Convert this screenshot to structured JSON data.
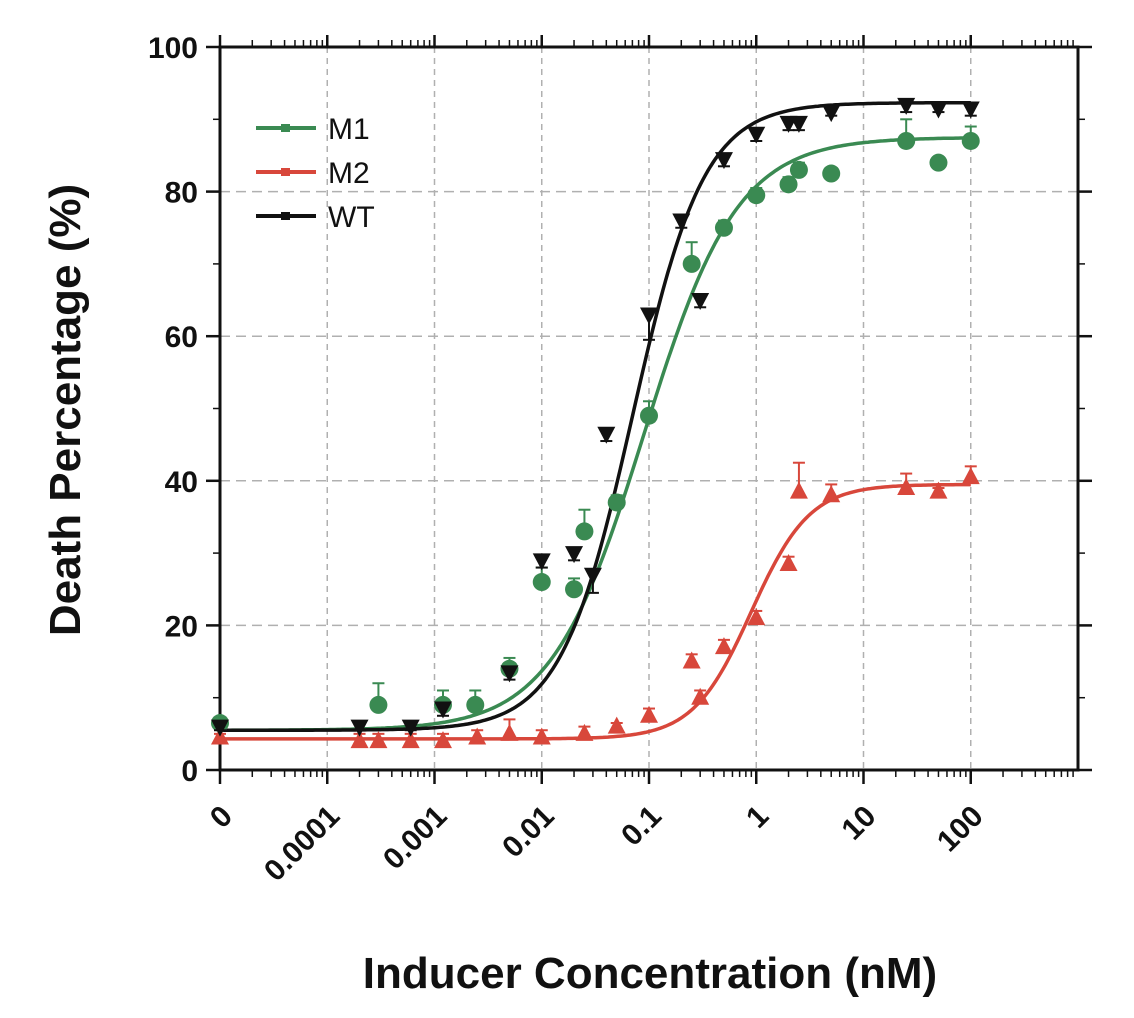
{
  "chart_data": {
    "type": "scatter",
    "xlabel": "Inducer Concentration (nM)",
    "ylabel": "Death Percentage (%)",
    "x_scale": "log",
    "xlim": [
      1e-05,
      1000
    ],
    "ylim": [
      0,
      100
    ],
    "x_ticks": [
      {
        "value": 1e-05,
        "label": "0"
      },
      {
        "value": 0.0001,
        "label": "0.0001"
      },
      {
        "value": 0.001,
        "label": "0.001"
      },
      {
        "value": 0.01,
        "label": "0.01"
      },
      {
        "value": 0.1,
        "label": "0.1"
      },
      {
        "value": 1,
        "label": "1"
      },
      {
        "value": 10,
        "label": "10"
      },
      {
        "value": 100,
        "label": "100"
      }
    ],
    "y_ticks": [
      {
        "value": 0,
        "label": "0"
      },
      {
        "value": 20,
        "label": "20"
      },
      {
        "value": 40,
        "label": "40"
      },
      {
        "value": 60,
        "label": "60"
      },
      {
        "value": 80,
        "label": "80"
      },
      {
        "value": 100,
        "label": "100"
      }
    ],
    "grid": true,
    "legend_position": "top-left",
    "series": [
      {
        "name": "M1",
        "color": "#3a8a52",
        "marker": "circle",
        "points": [
          {
            "x": 1e-05,
            "y": 6.5,
            "err": 0.5
          },
          {
            "x": 0.0003,
            "y": 9,
            "err": 3
          },
          {
            "x": 0.0012,
            "y": 9,
            "err": 2
          },
          {
            "x": 0.0024,
            "y": 9,
            "err": 2
          },
          {
            "x": 0.005,
            "y": 14,
            "err": 1.5
          },
          {
            "x": 0.01,
            "y": 26,
            "err": 2
          },
          {
            "x": 0.02,
            "y": 25,
            "err": 1.5
          },
          {
            "x": 0.025,
            "y": 33,
            "err": 3
          },
          {
            "x": 0.05,
            "y": 37,
            "err": 1
          },
          {
            "x": 0.1,
            "y": 49,
            "err": 2
          },
          {
            "x": 0.25,
            "y": 70,
            "err": 3
          },
          {
            "x": 0.5,
            "y": 75,
            "err": 1
          },
          {
            "x": 1,
            "y": 79.5,
            "err": 1
          },
          {
            "x": 2,
            "y": 81,
            "err": 1
          },
          {
            "x": 2.5,
            "y": 83,
            "err": 1
          },
          {
            "x": 5,
            "y": 82.5,
            "err": 0.5
          },
          {
            "x": 25,
            "y": 87,
            "err": 3
          },
          {
            "x": 50,
            "y": 84,
            "err": 0.5
          },
          {
            "x": 100,
            "y": 87,
            "err": 2
          }
        ],
        "fit": {
          "bottom": 5.5,
          "top": 87.5,
          "ec50": 0.09,
          "hill": 1.0
        }
      },
      {
        "name": "M2",
        "color": "#d8473b",
        "marker": "triangle-up",
        "points": [
          {
            "x": 1e-05,
            "y": 4.5,
            "err": 0.5
          },
          {
            "x": 0.0002,
            "y": 4,
            "err": 1
          },
          {
            "x": 0.0003,
            "y": 4,
            "err": 1
          },
          {
            "x": 0.0006,
            "y": 4,
            "err": 1
          },
          {
            "x": 0.0012,
            "y": 4,
            "err": 1
          },
          {
            "x": 0.0025,
            "y": 4.5,
            "err": 1
          },
          {
            "x": 0.005,
            "y": 5,
            "err": 2
          },
          {
            "x": 0.01,
            "y": 4.5,
            "err": 1
          },
          {
            "x": 0.025,
            "y": 5,
            "err": 1
          },
          {
            "x": 0.05,
            "y": 6,
            "err": 0.5
          },
          {
            "x": 0.1,
            "y": 7.5,
            "err": 1
          },
          {
            "x": 0.25,
            "y": 15,
            "err": 1
          },
          {
            "x": 0.3,
            "y": 10,
            "err": 1
          },
          {
            "x": 0.5,
            "y": 17,
            "err": 1
          },
          {
            "x": 1,
            "y": 21,
            "err": 1
          },
          {
            "x": 2,
            "y": 28.5,
            "err": 1
          },
          {
            "x": 2.5,
            "y": 38.5,
            "err": 4
          },
          {
            "x": 5,
            "y": 38,
            "err": 1.5
          },
          {
            "x": 25,
            "y": 39,
            "err": 2
          },
          {
            "x": 50,
            "y": 38.5,
            "err": 0.5
          },
          {
            "x": 100,
            "y": 40.5,
            "err": 1.5
          }
        ],
        "fit": {
          "bottom": 4.3,
          "top": 39.5,
          "ec50": 0.9,
          "hill": 1.6
        }
      },
      {
        "name": "WT",
        "color": "#111111",
        "marker": "triangle-down",
        "points": [
          {
            "x": 1e-05,
            "y": 6,
            "err": 0.5
          },
          {
            "x": 0.0002,
            "y": 6,
            "err": 0.5
          },
          {
            "x": 0.0006,
            "y": 6,
            "err": 0.5
          },
          {
            "x": 0.0012,
            "y": 8.5,
            "err": 1
          },
          {
            "x": 0.005,
            "y": 13.5,
            "err": 1
          },
          {
            "x": 0.01,
            "y": 29,
            "err": 1
          },
          {
            "x": 0.02,
            "y": 30,
            "err": 1
          },
          {
            "x": 0.03,
            "y": 27,
            "err": 2.5
          },
          {
            "x": 0.04,
            "y": 46.5,
            "err": 1
          },
          {
            "x": 0.1,
            "y": 63,
            "err": 3.5
          },
          {
            "x": 0.2,
            "y": 76,
            "err": 1
          },
          {
            "x": 0.3,
            "y": 65,
            "err": 1
          },
          {
            "x": 0.5,
            "y": 84.5,
            "err": 1
          },
          {
            "x": 1,
            "y": 88,
            "err": 1
          },
          {
            "x": 2,
            "y": 89.5,
            "err": 1
          },
          {
            "x": 2.5,
            "y": 89.5,
            "err": 1
          },
          {
            "x": 5,
            "y": 91,
            "err": 0.5
          },
          {
            "x": 25,
            "y": 92,
            "err": 1
          },
          {
            "x": 50,
            "y": 91.5,
            "err": 0.5
          },
          {
            "x": 100,
            "y": 91.5,
            "err": 1
          }
        ],
        "fit": {
          "bottom": 5.5,
          "top": 92.3,
          "ec50": 0.07,
          "hill": 1.3
        }
      }
    ]
  }
}
